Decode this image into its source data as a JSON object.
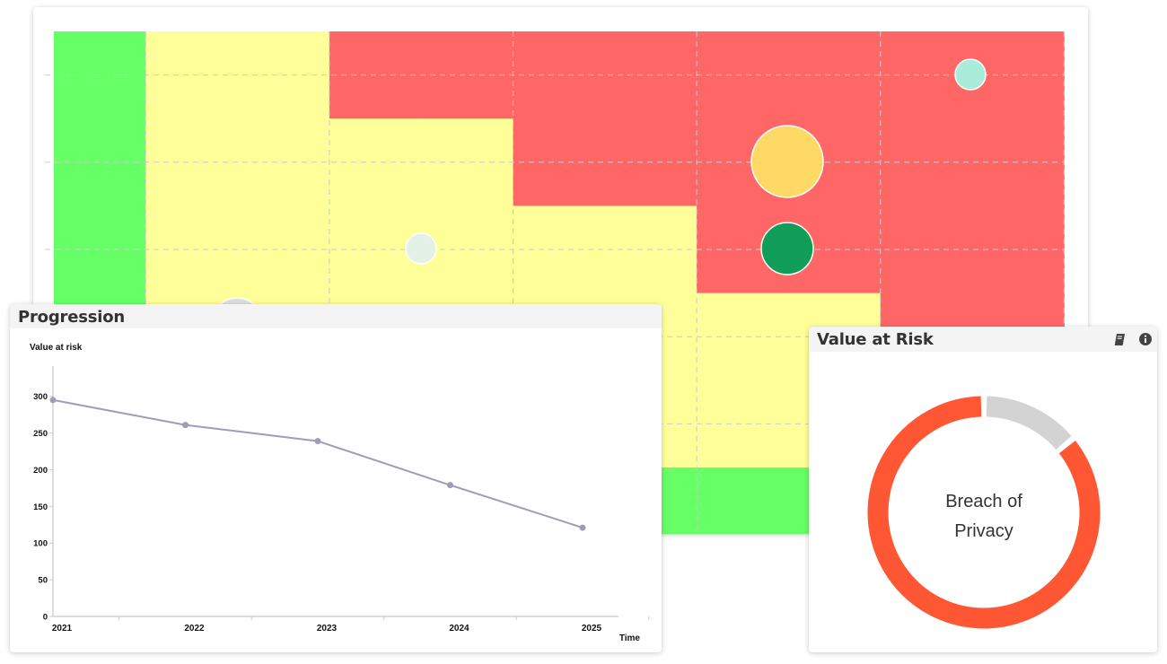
{
  "heatmap": {
    "bands": [
      {
        "level": "low",
        "color": "#66ff66"
      },
      {
        "level": "medium",
        "color": "#ffff99"
      },
      {
        "level": "high",
        "color": "#ff6666"
      }
    ],
    "bubbles": [
      {
        "name": "risk-bubble-1",
        "color": "#a8ecd9"
      },
      {
        "name": "risk-bubble-2",
        "color": "#ffd966"
      },
      {
        "name": "risk-bubble-3",
        "color": "#0f9d58"
      },
      {
        "name": "risk-bubble-4",
        "color": "#e3f1e6"
      },
      {
        "name": "risk-bubble-5",
        "color": "#dde0dd"
      }
    ]
  },
  "progression": {
    "title": "Progression",
    "chart_data": {
      "type": "line",
      "title": "",
      "ylabel": "Value at risk",
      "xlabel": "Time",
      "categories": [
        "2021",
        "2022",
        "2023",
        "2024",
        "2025"
      ],
      "values": [
        295,
        261,
        239,
        179,
        121
      ],
      "yticks": [
        0,
        50,
        100,
        150,
        200,
        250,
        300
      ],
      "ylim": [
        0,
        340
      ],
      "grid": false,
      "line_color": "#a09cb8"
    }
  },
  "value_at_risk": {
    "title": "Value at Risk",
    "icons": {
      "book": "book-icon",
      "info": "info-icon"
    },
    "chart_data": {
      "type": "pie",
      "donut": true,
      "center_label": [
        "Breach of",
        "Privacy"
      ],
      "slices": [
        {
          "share": 0.86,
          "color": "#ff5733"
        },
        {
          "share": 0.14,
          "color": "#d3d3d3"
        }
      ]
    }
  }
}
